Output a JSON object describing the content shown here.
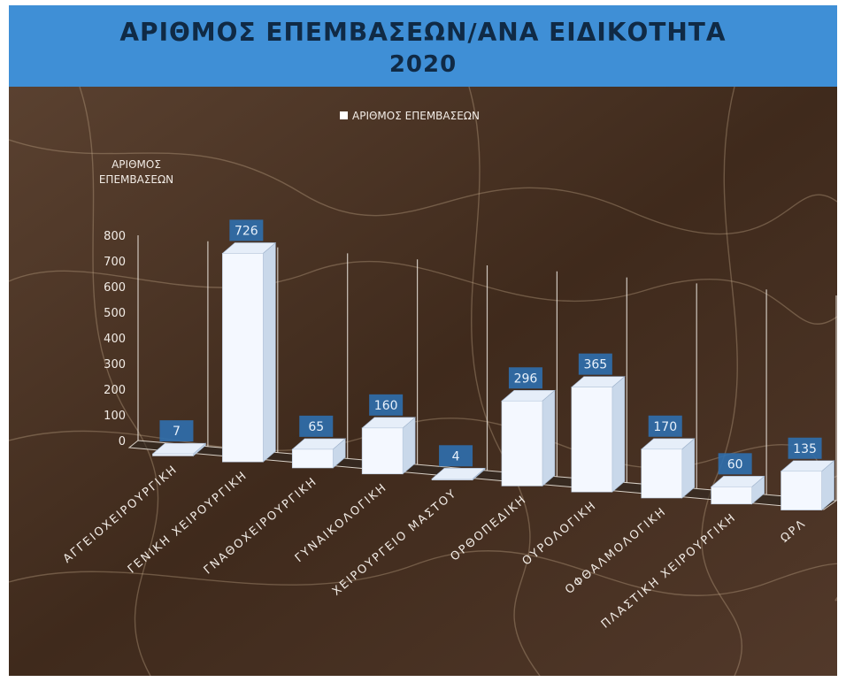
{
  "chart_data": {
    "type": "bar",
    "title": "ΑΡΙΘΜΟΣ ΕΠΕΜΒΑΣΕΩΝ/ΑΝΑ ΕΙΔΙΚΟΤΗΤΑ",
    "subtitle": "2020",
    "ylabel": [
      "ΑΡΙΘΜΟΣ",
      "ΕΠΕΜΒΑΣΕΩΝ"
    ],
    "xlabel": "",
    "ylim": [
      0,
      800
    ],
    "yticks": [
      0,
      100,
      200,
      300,
      400,
      500,
      600,
      700,
      800
    ],
    "legend": {
      "position": "top",
      "entries": [
        "ΑΡΙΘΜΟΣ ΕΠΕΜΒΑΣΕΩΝ"
      ]
    },
    "categories": [
      "ΑΓΓΕΙΟΧΕΙΡΟΥΡΓΙΚΗ",
      "ΓΕΝΙΚΗ ΧΕΙΡΟΥΡΓΙΚΗ",
      "ΓΝΑΘΟΧΕΙΡΟΥΡΓΙΚΗ",
      "ΓΥΝΑΙΚΟΛΟΓΙΚΗ",
      "ΧΕΙΡΟΥΡΓΕΙΟ ΜΑΣΤΟΥ",
      "ΟΡΘΟΠΕΔΙΚΗ",
      "ΟΥΡΟΛΟΓΙΚΗ",
      "ΟΦΘΑΛΜΟΛΟΓΙΚΗ",
      "ΠΛΑΣΤΙΚΗ ΧΕΙΡΟΥΡΓΙΚΗ",
      "ΩΡΛ"
    ],
    "series": [
      {
        "name": "ΑΡΙΘΜΟΣ ΕΠΕΜΒΑΣΕΩΝ",
        "values": [
          7,
          726,
          65,
          160,
          4,
          296,
          365,
          170,
          60,
          135
        ]
      }
    ],
    "grid": true,
    "style": "3d-column",
    "colors": {
      "bar_front": "#f4f8ff",
      "bar_side": "#c9d8ea",
      "bar_top": "#e6eef9",
      "data_label_bg": "#2f6fae",
      "title_bg": "#3f8fd6",
      "title_text": "#102a45",
      "background": "#4a3222",
      "text": "#f2ece6"
    }
  }
}
